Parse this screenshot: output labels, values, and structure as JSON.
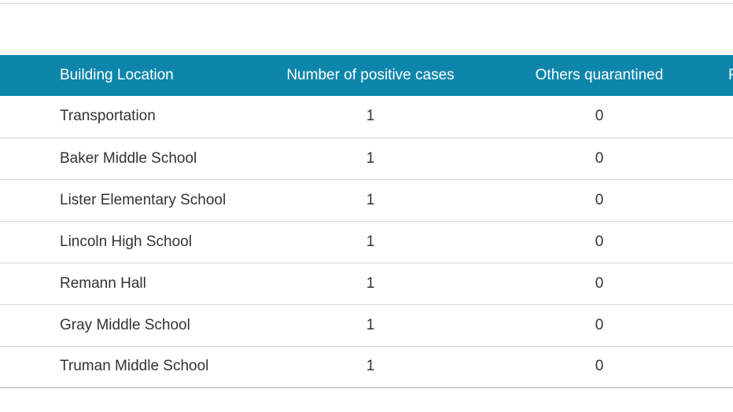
{
  "table": {
    "headers": {
      "location": "Building Location",
      "cases": "Number of positive cases",
      "others": "Others quarantined",
      "extra_partial": "F"
    },
    "rows": [
      {
        "location": "Transportation",
        "cases": "1",
        "others": "0"
      },
      {
        "location": "Baker Middle School",
        "cases": "1",
        "others": "0"
      },
      {
        "location": "Lister Elementary School",
        "cases": "1",
        "others": "0"
      },
      {
        "location": "Lincoln High School",
        "cases": "1",
        "others": "0"
      },
      {
        "location": "Remann Hall",
        "cases": "1",
        "others": "0"
      },
      {
        "location": "Gray Middle School",
        "cases": "1",
        "others": "0"
      },
      {
        "location": "Truman Middle School",
        "cases": "1",
        "others": "0"
      }
    ]
  },
  "colors": {
    "header_bg": "#0e86ab",
    "header_text": "#ffffff",
    "body_text": "#333333",
    "row_border": "#d6d6d6"
  }
}
